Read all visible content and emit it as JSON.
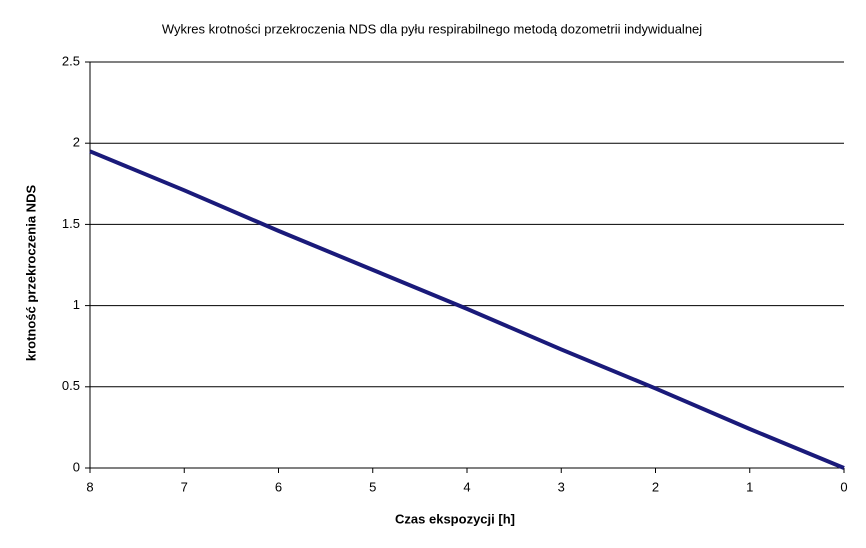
{
  "chart_data": {
    "type": "line",
    "title": "Wykres krotności przekroczenia NDS dla pyłu respirabilnego metodą dozometrii indywidualnej",
    "x_label": "Czas ekspozycji [h]",
    "y_label": "krotność przekroczenia NDS",
    "x": [
      8,
      7,
      6,
      5,
      4,
      3,
      2,
      1,
      0
    ],
    "series": [
      {
        "color": "#1a1a7a",
        "values": [
          1.95,
          1.71,
          1.46,
          1.22,
          0.98,
          0.73,
          0.49,
          0.24,
          0
        ]
      }
    ],
    "xlim": [
      8,
      0
    ],
    "xticks": [
      8,
      7,
      6,
      5,
      4,
      3,
      2,
      1,
      0
    ],
    "ylim": [
      0,
      2.5
    ],
    "yticks": [
      0,
      0.5,
      1,
      1.5,
      2,
      2.5
    ],
    "grid": true
  }
}
